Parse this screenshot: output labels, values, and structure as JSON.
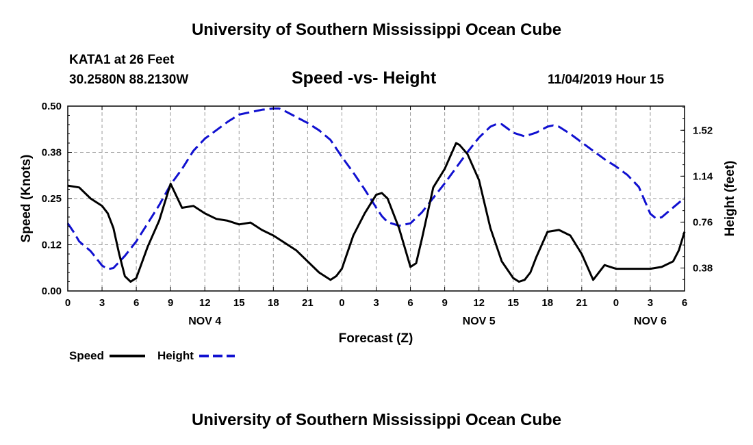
{
  "header": {
    "title": "University of Southern Mississippi Ocean Cube",
    "station": "KATA1 at 26 Feet",
    "coordinates": "30.2580N 88.2130W",
    "chart_title": "Speed -vs- Height",
    "date": "11/04/2019 Hour 15"
  },
  "footer": {
    "title": "University of Southern Mississippi Ocean Cube"
  },
  "colors": {
    "speed": "#000000",
    "height": "#1010d0"
  },
  "chart_data": {
    "type": "line",
    "title": "Speed -vs- Height",
    "xlabel": "Forecast (Z)",
    "ylabel": "Speed (Knots)",
    "y2label": "Height (feet)",
    "xlim": [
      0,
      54
    ],
    "ylim": [
      0,
      0.5
    ],
    "y2lim": [
      0.19,
      1.72
    ],
    "x_ticks": [
      {
        "x": 0,
        "label": "0"
      },
      {
        "x": 3,
        "label": "3"
      },
      {
        "x": 6,
        "label": "6"
      },
      {
        "x": 9,
        "label": "9"
      },
      {
        "x": 12,
        "label": "12"
      },
      {
        "x": 15,
        "label": "15"
      },
      {
        "x": 18,
        "label": "18"
      },
      {
        "x": 21,
        "label": "21"
      },
      {
        "x": 24,
        "label": "0"
      },
      {
        "x": 27,
        "label": "3"
      },
      {
        "x": 30,
        "label": "6"
      },
      {
        "x": 33,
        "label": "9"
      },
      {
        "x": 36,
        "label": "12"
      },
      {
        "x": 39,
        "label": "15"
      },
      {
        "x": 42,
        "label": "18"
      },
      {
        "x": 45,
        "label": "21"
      },
      {
        "x": 48,
        "label": "0"
      },
      {
        "x": 51,
        "label": "3"
      },
      {
        "x": 54,
        "label": "6"
      }
    ],
    "day_labels": [
      {
        "x": 12,
        "label": "NOV 4"
      },
      {
        "x": 36,
        "label": "NOV 5"
      },
      {
        "x": 51,
        "label": "NOV 6"
      }
    ],
    "y_ticks": [
      {
        "v": 0.0,
        "label": "0.00"
      },
      {
        "v": 0.125,
        "label": "0.12"
      },
      {
        "v": 0.25,
        "label": "0.25"
      },
      {
        "v": 0.375,
        "label": "0.38"
      },
      {
        "v": 0.5,
        "label": "0.50"
      }
    ],
    "y2_ticks": [
      {
        "v": 0.38,
        "label": "0.38"
      },
      {
        "v": 0.76,
        "label": "0.76"
      },
      {
        "v": 1.14,
        "label": "1.14"
      },
      {
        "v": 1.52,
        "label": "1.52"
      }
    ],
    "legend": [
      {
        "name": "Speed",
        "style": "solid"
      },
      {
        "name": "Height",
        "style": "dashed"
      }
    ],
    "series": [
      {
        "name": "Speed",
        "axis": "left",
        "x": [
          0,
          1,
          2,
          3,
          3.5,
          4,
          4.5,
          5,
          5.5,
          6,
          7,
          8,
          9,
          10,
          11,
          12,
          13,
          14,
          15,
          16,
          17,
          18,
          19,
          20,
          21,
          22,
          23,
          23.5,
          24,
          25,
          26,
          27,
          27.5,
          28,
          29,
          30,
          30.5,
          31,
          32,
          33,
          34,
          34.3,
          35,
          36,
          37,
          38,
          39,
          39.5,
          40,
          40.5,
          41,
          42,
          43,
          44,
          45,
          46,
          47,
          47.5,
          48,
          49,
          50,
          51,
          52,
          53,
          53.5,
          54
        ],
        "values": [
          0.285,
          0.28,
          0.25,
          0.23,
          0.21,
          0.17,
          0.1,
          0.04,
          0.025,
          0.035,
          0.12,
          0.19,
          0.29,
          0.225,
          0.23,
          0.21,
          0.195,
          0.19,
          0.18,
          0.185,
          0.165,
          0.15,
          0.13,
          0.11,
          0.08,
          0.05,
          0.03,
          0.04,
          0.06,
          0.15,
          0.21,
          0.26,
          0.265,
          0.25,
          0.17,
          0.065,
          0.075,
          0.14,
          0.28,
          0.33,
          0.4,
          0.395,
          0.37,
          0.3,
          0.17,
          0.08,
          0.035,
          0.025,
          0.03,
          0.05,
          0.09,
          0.16,
          0.165,
          0.15,
          0.1,
          0.03,
          0.07,
          0.065,
          0.06,
          0.06,
          0.06,
          0.06,
          0.065,
          0.08,
          0.11,
          0.16
        ]
      },
      {
        "name": "Height",
        "axis": "right",
        "x": [
          0,
          0.5,
          1,
          2,
          3,
          3.5,
          4,
          5,
          6,
          7,
          8,
          9,
          10,
          11,
          12,
          13,
          14,
          15,
          16,
          17,
          18,
          18.5,
          19,
          20,
          21,
          22,
          23,
          24,
          25,
          26,
          27,
          27.5,
          28,
          29,
          30,
          31,
          32,
          33,
          34,
          35,
          36,
          37,
          37.5,
          38,
          39,
          40,
          41,
          42,
          42.5,
          43,
          44,
          45,
          46,
          47,
          48,
          49,
          50,
          51,
          51.5,
          52,
          53,
          54
        ],
        "values": [
          0.75,
          0.68,
          0.6,
          0.52,
          0.4,
          0.37,
          0.38,
          0.48,
          0.6,
          0.75,
          0.9,
          1.07,
          1.2,
          1.35,
          1.45,
          1.52,
          1.59,
          1.65,
          1.67,
          1.69,
          1.7,
          1.7,
          1.68,
          1.63,
          1.58,
          1.52,
          1.44,
          1.3,
          1.17,
          1.03,
          0.88,
          0.81,
          0.76,
          0.73,
          0.75,
          0.84,
          0.96,
          1.08,
          1.21,
          1.34,
          1.46,
          1.55,
          1.57,
          1.57,
          1.5,
          1.47,
          1.5,
          1.55,
          1.56,
          1.55,
          1.49,
          1.42,
          1.35,
          1.28,
          1.22,
          1.15,
          1.05,
          0.83,
          0.79,
          0.8,
          0.88,
          0.96
        ]
      }
    ]
  }
}
